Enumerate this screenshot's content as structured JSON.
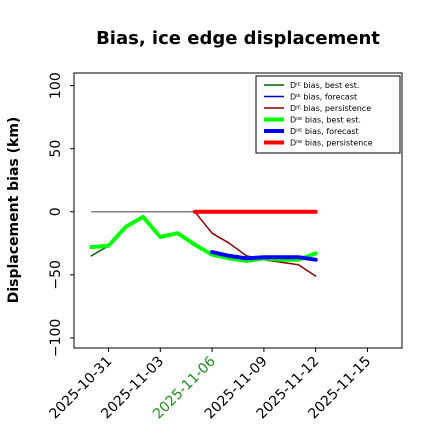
{
  "chart_data": {
    "type": "line",
    "title": "Bias, ice edge displacement",
    "ylabel": "Displacement bias (km)",
    "xlabel": "",
    "ylim": [
      -108,
      110
    ],
    "xlim": [
      "2025-10-29",
      "2025-11-17"
    ],
    "yticks": [
      100,
      50,
      0,
      -50,
      -100
    ],
    "ytick_labels": [
      "100",
      "50",
      "0",
      "−50",
      "−100"
    ],
    "xticks": [
      "2025-10-31",
      "2025-11-03",
      "2025-11-06",
      "2025-11-09",
      "2025-11-12",
      "2025-11-15"
    ],
    "highlight_xtick": "2025-11-06",
    "highlight_color": "#228b22",
    "reference_line": {
      "y": 0,
      "from": "2025-10-30",
      "to": "2025-11-12",
      "color": "#808080"
    },
    "legend_position": "top-right",
    "series": [
      {
        "name": "Dᴵᴱ bias, best est.",
        "color": "#006400",
        "width": 1.5,
        "x": [
          "2025-10-30",
          "2025-10-31",
          "2025-11-01",
          "2025-11-02",
          "2025-11-03",
          "2025-11-04",
          "2025-11-05",
          "2025-11-06",
          "2025-11-07",
          "2025-11-08",
          "2025-11-09",
          "2025-11-10",
          "2025-11-11",
          "2025-11-12"
        ],
        "y": [
          -35,
          -27,
          -12,
          -4,
          -20,
          -17,
          -26,
          -34,
          -37,
          -39,
          -37,
          -38,
          -37,
          -34
        ]
      },
      {
        "name": "Dᴵᴱ bias, forecast",
        "color": "#0000cd",
        "width": 1.5,
        "x": [
          "2025-11-06",
          "2025-11-07",
          "2025-11-08",
          "2025-11-09",
          "2025-11-10",
          "2025-11-11",
          "2025-11-12"
        ],
        "y": [
          -32,
          -35,
          -38,
          -36,
          -36,
          -37,
          -38
        ]
      },
      {
        "name": "Dᴵᴱ bias, persistence",
        "color": "#8b0000",
        "width": 1.5,
        "x": [
          "2025-11-05",
          "2025-11-06",
          "2025-11-07",
          "2025-11-08",
          "2025-11-09",
          "2025-11-10",
          "2025-11-11",
          "2025-11-12"
        ],
        "y": [
          0,
          -17,
          -25,
          -35,
          -38,
          -40,
          -42,
          -51
        ]
      },
      {
        "name": "Dᴵᴵᴱ bias, best est.",
        "color": "#00ff00",
        "width": 4,
        "x": [
          "2025-10-30",
          "2025-10-31",
          "2025-11-01",
          "2025-11-02",
          "2025-11-03",
          "2025-11-04",
          "2025-11-05",
          "2025-11-06",
          "2025-11-07",
          "2025-11-08",
          "2025-11-09",
          "2025-11-10",
          "2025-11-11",
          "2025-11-12"
        ],
        "y": [
          -28,
          -27,
          -12,
          -4,
          -20,
          -17,
          -26,
          -34,
          -37,
          -39,
          -37,
          -38,
          -38,
          -33
        ]
      },
      {
        "name": "Dᴵᴵᴱ bias, forecast",
        "color": "#0000ff",
        "width": 4,
        "x": [
          "2025-11-06",
          "2025-11-07",
          "2025-11-08",
          "2025-11-09",
          "2025-11-10",
          "2025-11-11",
          "2025-11-12"
        ],
        "y": [
          -32,
          -35,
          -37,
          -36,
          -36,
          -36,
          -38
        ]
      },
      {
        "name": "Dᴵᴵᴱ bias, persistence",
        "color": "#ff0000",
        "width": 4,
        "x": [
          "2025-11-05",
          "2025-11-06",
          "2025-11-07",
          "2025-11-08",
          "2025-11-09",
          "2025-11-10",
          "2025-11-11",
          "2025-11-12"
        ],
        "y": [
          0,
          0,
          0,
          0,
          0,
          0,
          0,
          0
        ]
      }
    ]
  }
}
